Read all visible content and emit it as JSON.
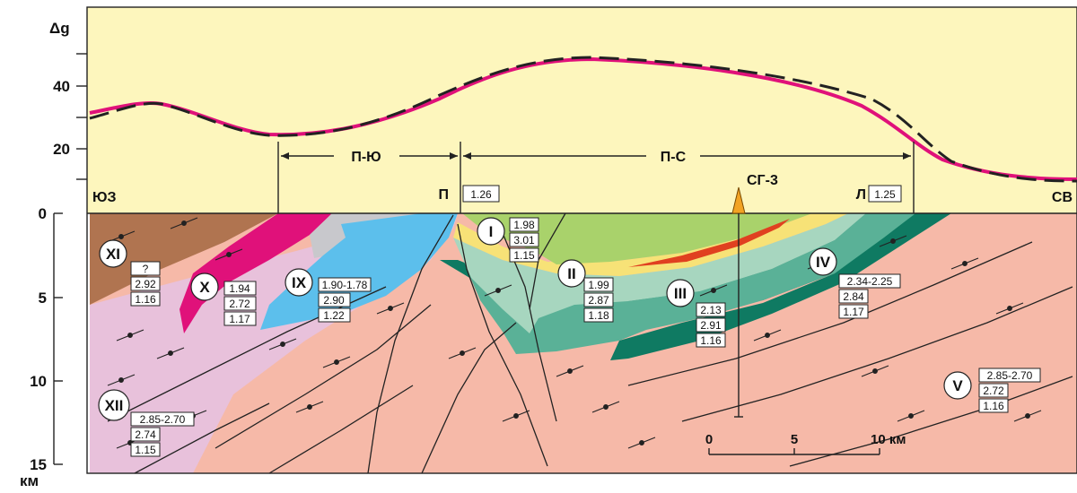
{
  "colors": {
    "gravity_bg": "#fdf6bd",
    "xi": "#b07450",
    "x": "#e0117a",
    "ix": "#5cbfec",
    "grey": "#c8c8cc",
    "xii": "#e8c1db",
    "basement": "#f6b9a8",
    "i_green": "#a9d26b",
    "yellow": "#f7e277",
    "red": "#e04020",
    "ii_light": "#a7d6bf",
    "iii_mid": "#5ab197",
    "iv_dark": "#0f7a62",
    "observed_curve": "#e0117a",
    "model_curve": "#222222",
    "well_marker": "#f2a324"
  },
  "gravity_axis": {
    "title": "Δg",
    "ticks": [
      "40",
      "20"
    ]
  },
  "depth_axis": {
    "ticks": [
      "0",
      "5",
      "10",
      "15"
    ],
    "unit": "км"
  },
  "profile": {
    "ends": {
      "left": "ЮЗ",
      "right": "СВ"
    },
    "zones": [
      {
        "label": "П-Ю"
      },
      {
        "label": "П-С"
      }
    ],
    "points": [
      {
        "label": "П",
        "value": "1.26"
      },
      {
        "label": "Л",
        "value": "1.25"
      }
    ],
    "well": {
      "label": "СГ-3"
    }
  },
  "units": [
    {
      "id": "I",
      "values": [
        "1.98",
        "3.01",
        "1.15"
      ]
    },
    {
      "id": "II",
      "values": [
        "1.99",
        "2.87",
        "1.18"
      ]
    },
    {
      "id": "III",
      "values": [
        "2.13",
        "2.91",
        "1.16"
      ]
    },
    {
      "id": "IV",
      "values": [
        "2.34-2.25",
        "2.84",
        "1.17"
      ]
    },
    {
      "id": "V",
      "values": [
        "2.85-2.70",
        "2.72",
        "1.16"
      ]
    },
    {
      "id": "IX",
      "values": [
        "1.90-1.78",
        "2.90",
        "1.22"
      ]
    },
    {
      "id": "X",
      "values": [
        "1.94",
        "2.72",
        "1.17"
      ]
    },
    {
      "id": "XI",
      "values": [
        "?",
        "2.92",
        "1.16"
      ]
    },
    {
      "id": "XII",
      "values": [
        "2.85-2.70",
        "2.74",
        "1.15"
      ]
    }
  ],
  "scale_bar": {
    "ticks": [
      "0",
      "5",
      "10 км"
    ]
  }
}
